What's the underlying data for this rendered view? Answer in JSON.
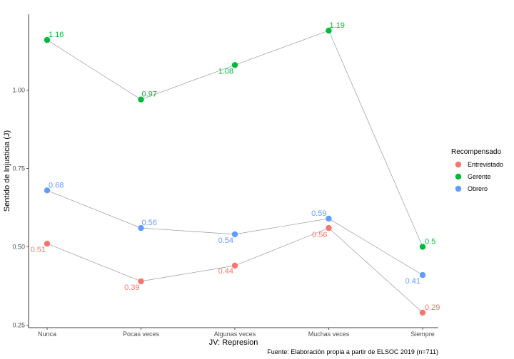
{
  "chart_data": {
    "type": "line",
    "xlabel": "JV: Represion",
    "ylabel": "Sentido de Injusticia (J)",
    "categories": [
      "Nunca",
      "Pocas veces",
      "Algunas veces",
      "Muchas veces",
      "Siempre"
    ],
    "ylim": [
      0.25,
      1.25
    ],
    "yticks": [
      0.25,
      0.5,
      0.75,
      1.0
    ],
    "ytick_labels": [
      "0.25",
      "0.50",
      "0.75",
      "1.00"
    ],
    "grid": false,
    "legend": {
      "title": "Recompensado",
      "position": "right"
    },
    "caption": "Fuente: Elaboración propia  a partir de ELSOC 2019 (n=711)",
    "series": [
      {
        "name": "Entrevistado",
        "color": "#F8766D",
        "values": [
          0.51,
          0.39,
          0.44,
          0.56,
          0.29
        ],
        "labels": [
          "0.51",
          "0.39",
          "0.44",
          "0.56",
          "0.29"
        ]
      },
      {
        "name": "Gerente",
        "color": "#00BA38",
        "values": [
          1.16,
          0.97,
          1.08,
          1.19,
          0.5
        ],
        "labels": [
          "1.16",
          "0.97",
          "1.08",
          "1.19",
          "0.5"
        ]
      },
      {
        "name": "Obrero",
        "color": "#619CFF",
        "values": [
          0.68,
          0.56,
          0.54,
          0.59,
          0.41
        ],
        "labels": [
          "0.68",
          "0.56",
          "0.54",
          "0.59",
          "0.41"
        ]
      }
    ]
  }
}
